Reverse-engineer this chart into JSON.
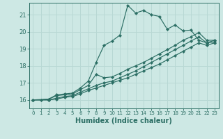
{
  "xlabel": "Humidex (Indice chaleur)",
  "ylabel": "",
  "background_color": "#cde8e4",
  "line_color": "#2b6e64",
  "grid_color": "#b8d8d4",
  "xlim": [
    -0.5,
    23.5
  ],
  "ylim": [
    15.5,
    21.7
  ],
  "xticks": [
    0,
    1,
    2,
    3,
    4,
    5,
    6,
    7,
    8,
    9,
    10,
    11,
    12,
    13,
    14,
    15,
    16,
    17,
    18,
    19,
    20,
    21,
    22,
    23
  ],
  "yticks": [
    16,
    17,
    18,
    19,
    20,
    21
  ],
  "lines": [
    {
      "x": [
        0,
        1,
        2,
        3,
        4,
        5,
        6,
        7,
        8,
        9,
        10,
        11,
        12,
        13,
        14,
        15,
        16,
        17,
        18,
        19,
        20,
        21,
        22,
        23
      ],
      "y": [
        16.0,
        16.0,
        16.05,
        16.3,
        16.35,
        16.4,
        16.7,
        17.1,
        18.2,
        19.2,
        19.45,
        19.8,
        21.55,
        21.1,
        21.25,
        21.0,
        20.9,
        20.15,
        20.4,
        20.05,
        20.1,
        19.5,
        19.35,
        19.5
      ]
    },
    {
      "x": [
        0,
        2,
        3,
        4,
        5,
        6,
        7,
        8,
        9,
        10,
        11,
        12,
        13,
        14,
        15,
        16,
        17,
        18,
        19,
        20,
        21,
        22,
        23
      ],
      "y": [
        16.0,
        16.05,
        16.25,
        16.3,
        16.35,
        16.6,
        16.85,
        17.5,
        17.3,
        17.35,
        17.55,
        17.8,
        18.0,
        18.2,
        18.45,
        18.7,
        18.95,
        19.2,
        19.5,
        19.7,
        19.95,
        19.5,
        19.5
      ]
    },
    {
      "x": [
        0,
        2,
        3,
        4,
        5,
        6,
        7,
        8,
        9,
        10,
        11,
        12,
        13,
        14,
        15,
        16,
        17,
        18,
        19,
        20,
        21,
        22,
        23
      ],
      "y": [
        16.0,
        16.0,
        16.1,
        16.2,
        16.25,
        16.45,
        16.65,
        16.85,
        17.0,
        17.1,
        17.3,
        17.5,
        17.7,
        17.95,
        18.2,
        18.45,
        18.7,
        18.95,
        19.2,
        19.45,
        19.7,
        19.35,
        19.4
      ]
    },
    {
      "x": [
        0,
        2,
        3,
        4,
        5,
        6,
        7,
        8,
        9,
        10,
        11,
        12,
        13,
        14,
        15,
        16,
        17,
        18,
        19,
        20,
        21,
        22,
        23
      ],
      "y": [
        16.0,
        16.0,
        16.05,
        16.15,
        16.2,
        16.35,
        16.55,
        16.7,
        16.85,
        17.0,
        17.15,
        17.3,
        17.5,
        17.7,
        17.9,
        18.1,
        18.35,
        18.6,
        18.85,
        19.1,
        19.35,
        19.2,
        19.35
      ]
    }
  ]
}
